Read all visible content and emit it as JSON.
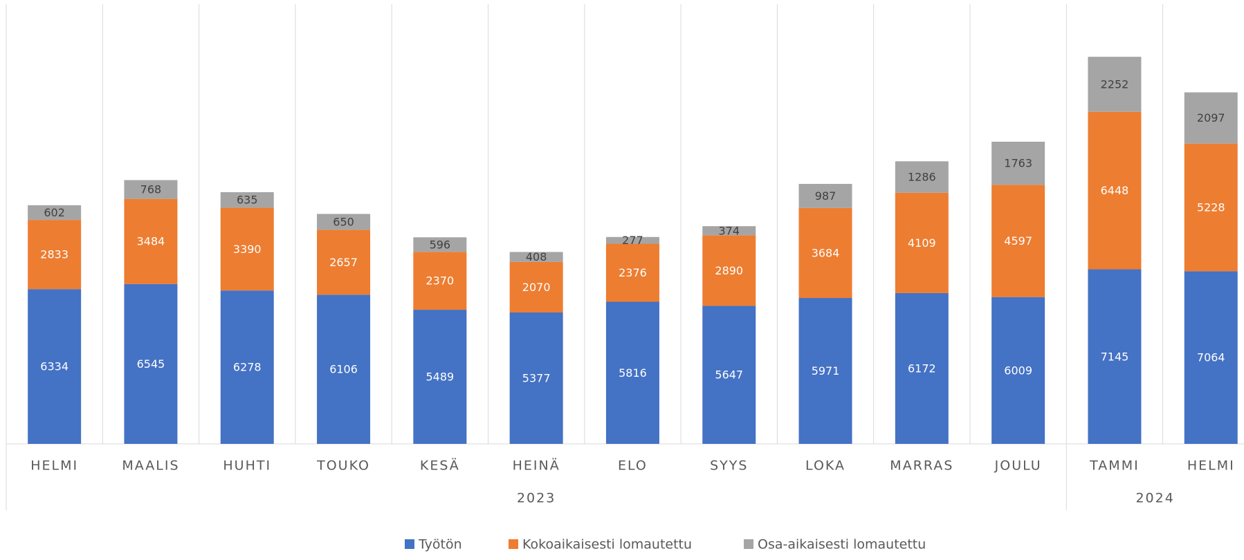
{
  "chart_data": {
    "type": "stacked_bar",
    "categories": [
      "HELMI",
      "MAALIS",
      "HUHTI",
      "TOUKO",
      "KESÄ",
      "HEINÄ",
      "ELO",
      "SYYS",
      "LOKA",
      "MARRAS",
      "JOULU",
      "TAMMI",
      "HELMI"
    ],
    "year_groups": [
      {
        "label": "2023",
        "count": 11
      },
      {
        "label": "2024",
        "count": 2
      }
    ],
    "series": [
      {
        "name": "Työtön",
        "color": "#4472c4",
        "values": [
          6334,
          6545,
          6278,
          6106,
          5489,
          5377,
          5816,
          5647,
          5971,
          6172,
          6009,
          7145,
          7064
        ]
      },
      {
        "name": "Kokoaikaisesti lomautettu",
        "color": "#ed7d31",
        "values": [
          2833,
          3484,
          3390,
          2657,
          2370,
          2070,
          2376,
          2890,
          3684,
          4109,
          4597,
          6448,
          5228
        ]
      },
      {
        "name": "Osa-aikaisesti lomautettu",
        "color": "#a5a5a5",
        "values": [
          602,
          768,
          635,
          650,
          596,
          408,
          277,
          374,
          987,
          1286,
          1763,
          2252,
          2097
        ]
      }
    ],
    "ylim": [
      0,
      18000
    ],
    "legend": "bottom"
  }
}
